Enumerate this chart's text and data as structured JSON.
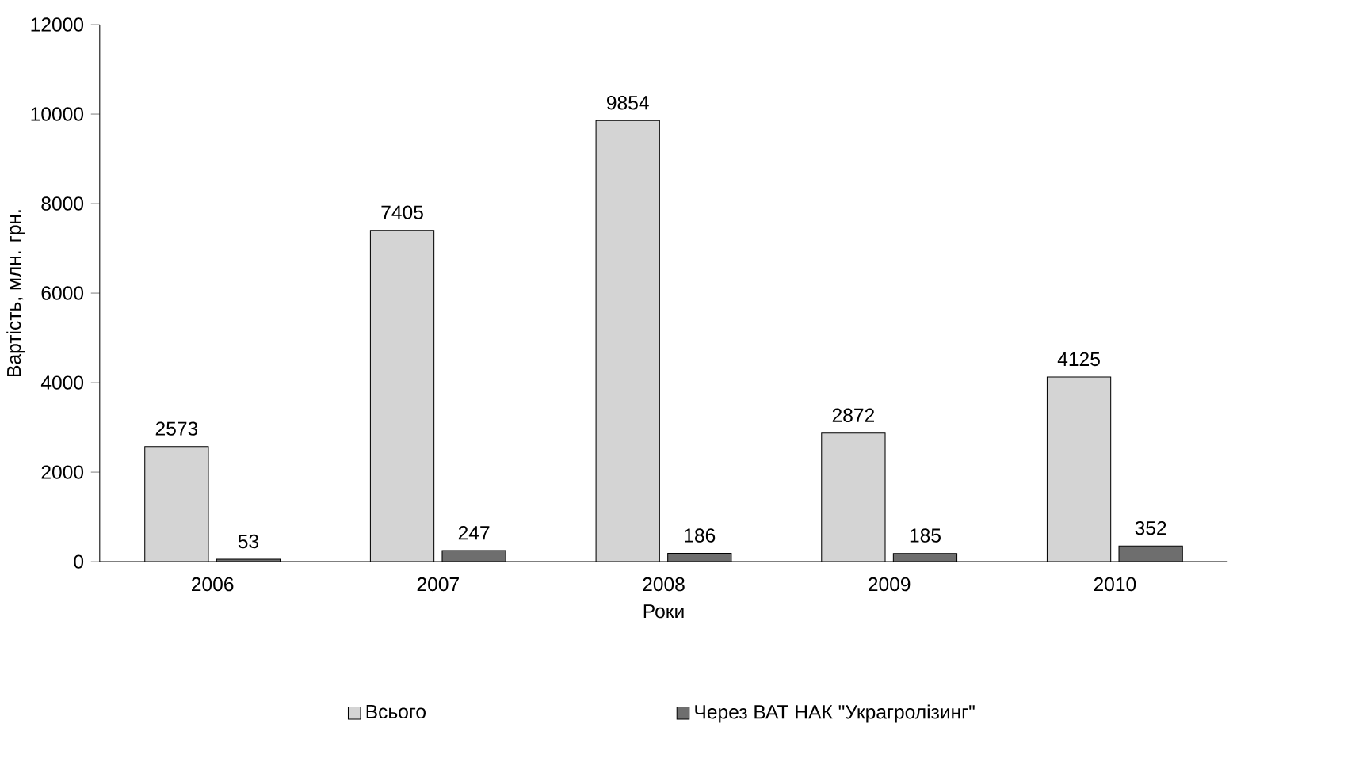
{
  "chart_data": {
    "type": "bar",
    "xlabel": "Роки",
    "ylabel": "Вартість, млн. грн.",
    "categories": [
      "2006",
      "2007",
      "2008",
      "2009",
      "2010"
    ],
    "series": [
      {
        "name": "Всього",
        "color": "#d4d4d4",
        "values": [
          2573,
          7405,
          9854,
          2872,
          4125
        ]
      },
      {
        "name": "Через ВАТ НАК \"Украгролізинг\"",
        "color": "#6e6e6e",
        "values": [
          53,
          247,
          186,
          185,
          352
        ]
      }
    ],
    "ylim": [
      0,
      12000
    ],
    "yticks": [
      0,
      2000,
      4000,
      6000,
      8000,
      10000,
      12000
    ],
    "data_labels": true,
    "legend": "bottom",
    "grid": false
  }
}
